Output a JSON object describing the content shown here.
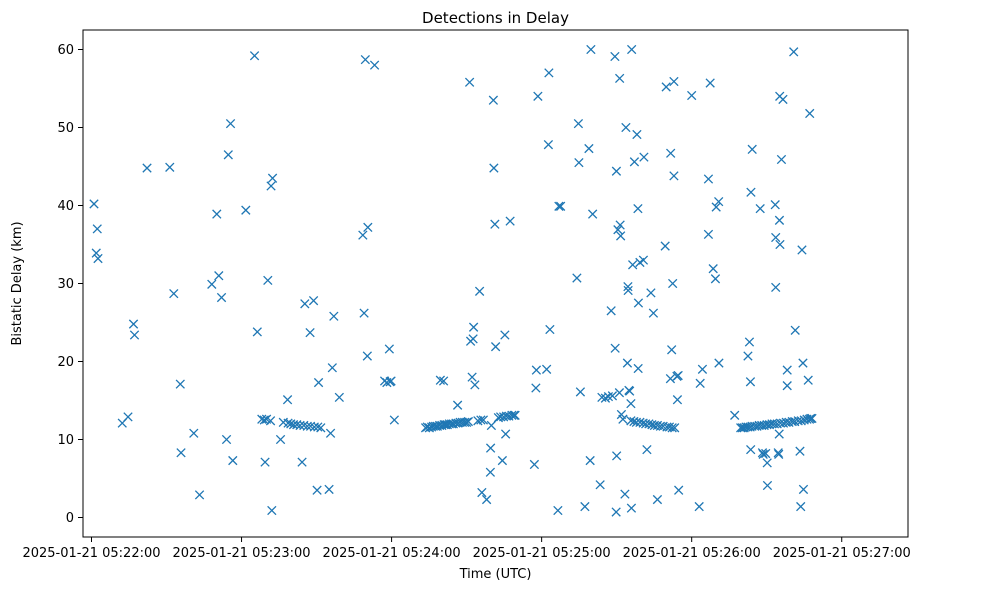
{
  "chart_data": {
    "type": "scatter",
    "title": "Detections in Delay",
    "xlabel": "Time (UTC)",
    "ylabel": "Bistatic Delay (km)",
    "x_unit": "seconds after 2025-01-21 05:22:00",
    "xlim": [
      -3.4,
      326.5
    ],
    "ylim": [
      -2.5,
      62.5
    ],
    "grid": false,
    "marker": "x",
    "color": "#1f77b4",
    "x_ticks": [
      0,
      60,
      120,
      180,
      240,
      300
    ],
    "x_tick_labels": [
      "2025-01-21 05:22:00",
      "2025-01-21 05:23:00",
      "2025-01-21 05:24:00",
      "2025-01-21 05:25:00",
      "2025-01-21 05:26:00",
      "2025-01-21 05:27:00"
    ],
    "y_ticks": [
      0,
      10,
      20,
      30,
      40,
      50,
      60
    ],
    "y_tick_labels": [
      "0",
      "10",
      "20",
      "30",
      "40",
      "50",
      "60"
    ],
    "series": [
      {
        "name": "detections",
        "points": [
          [
            1.0,
            40.2
          ],
          [
            1.9,
            33.9
          ],
          [
            2.3,
            37.0
          ],
          [
            2.6,
            33.2
          ],
          [
            12.3,
            12.1
          ],
          [
            14.6,
            12.9
          ],
          [
            16.8,
            24.8
          ],
          [
            17.2,
            23.4
          ],
          [
            22.2,
            44.8
          ],
          [
            31.3,
            44.9
          ],
          [
            32.9,
            28.7
          ],
          [
            35.5,
            17.1
          ],
          [
            35.8,
            8.3
          ],
          [
            40.9,
            10.8
          ],
          [
            43.2,
            2.9
          ],
          [
            48.1,
            29.9
          ],
          [
            50.1,
            38.9
          ],
          [
            50.9,
            31.0
          ],
          [
            52.0,
            28.2
          ],
          [
            54.0,
            10.0
          ],
          [
            54.7,
            46.5
          ],
          [
            55.6,
            50.5
          ],
          [
            56.5,
            7.3
          ],
          [
            61.7,
            39.4
          ],
          [
            65.2,
            59.2
          ],
          [
            66.3,
            23.8
          ],
          [
            68.1,
            12.6
          ],
          [
            69.1,
            12.5
          ],
          [
            69.4,
            7.1
          ],
          [
            70.0,
            12.6
          ],
          [
            70.5,
            30.4
          ],
          [
            71.6,
            12.4
          ],
          [
            71.8,
            42.5
          ],
          [
            72.1,
            0.9
          ],
          [
            72.4,
            43.5
          ],
          [
            75.6,
            10.0
          ],
          [
            76.7,
            12.2
          ],
          [
            78.4,
            15.1
          ],
          [
            78.6,
            12.1
          ],
          [
            79.7,
            12.0
          ],
          [
            80.8,
            11.9
          ],
          [
            82.1,
            11.9
          ],
          [
            83.4,
            11.8
          ],
          [
            84.2,
            7.1
          ],
          [
            84.9,
            11.8
          ],
          [
            85.3,
            27.4
          ],
          [
            86.3,
            11.7
          ],
          [
            87.4,
            23.7
          ],
          [
            87.6,
            11.7
          ],
          [
            88.8,
            27.8
          ],
          [
            89.1,
            11.6
          ],
          [
            90.2,
            3.5
          ],
          [
            90.5,
            11.6
          ],
          [
            90.8,
            17.3
          ],
          [
            91.7,
            11.5
          ],
          [
            95.0,
            3.6
          ],
          [
            95.6,
            10.8
          ],
          [
            96.3,
            19.2
          ],
          [
            96.9,
            25.8
          ],
          [
            99.1,
            15.4
          ],
          [
            108.5,
            36.2
          ],
          [
            109.0,
            26.2
          ],
          [
            109.5,
            58.7
          ],
          [
            110.3,
            20.7
          ],
          [
            110.5,
            37.2
          ],
          [
            113.2,
            58.0
          ],
          [
            117.2,
            17.5
          ],
          [
            118.1,
            17.3
          ],
          [
            119.1,
            21.6
          ],
          [
            119.4,
            17.4
          ],
          [
            119.8,
            17.5
          ],
          [
            121.1,
            12.5
          ],
          [
            133.6,
            11.5
          ],
          [
            134.3,
            11.6
          ],
          [
            135.1,
            11.5
          ],
          [
            136.0,
            11.6
          ],
          [
            136.7,
            11.7
          ],
          [
            137.6,
            11.7
          ],
          [
            138.3,
            11.7
          ],
          [
            139.2,
            11.8
          ],
          [
            139.5,
            17.6
          ],
          [
            140.1,
            11.8
          ],
          [
            140.8,
            17.5
          ],
          [
            141.0,
            11.9
          ],
          [
            141.6,
            11.9
          ],
          [
            142.3,
            11.9
          ],
          [
            143.1,
            12.0
          ],
          [
            144.0,
            12.0
          ],
          [
            144.7,
            12.0
          ],
          [
            145.7,
            12.1
          ],
          [
            146.4,
            14.4
          ],
          [
            146.6,
            12.1
          ],
          [
            147.4,
            12.2
          ],
          [
            148.3,
            12.2
          ],
          [
            149.2,
            12.2
          ],
          [
            150.0,
            12.2
          ],
          [
            150.7,
            12.3
          ],
          [
            151.2,
            55.8
          ],
          [
            151.6,
            22.6
          ],
          [
            152.2,
            18.0
          ],
          [
            152.6,
            22.9
          ],
          [
            152.8,
            24.4
          ],
          [
            153.3,
            17.0
          ],
          [
            154.5,
            12.4
          ],
          [
            155.2,
            29.0
          ],
          [
            155.7,
            12.5
          ],
          [
            156.1,
            3.2
          ],
          [
            156.7,
            12.5
          ],
          [
            158.0,
            2.3
          ],
          [
            159.5,
            5.8
          ],
          [
            159.6,
            8.9
          ],
          [
            159.9,
            11.8
          ],
          [
            160.7,
            53.5
          ],
          [
            160.9,
            44.8
          ],
          [
            161.3,
            37.6
          ],
          [
            161.6,
            21.9
          ],
          [
            162.7,
            12.8
          ],
          [
            163.6,
            12.9
          ],
          [
            164.3,
            7.3
          ],
          [
            164.8,
            12.9
          ],
          [
            165.3,
            23.4
          ],
          [
            165.6,
            10.7
          ],
          [
            165.9,
            13.0
          ],
          [
            166.9,
            13.0
          ],
          [
            167.4,
            38.0
          ],
          [
            168.1,
            13.1
          ],
          [
            169.0,
            13.1
          ],
          [
            169.4,
            13.1
          ],
          [
            177.1,
            6.8
          ],
          [
            177.7,
            16.6
          ],
          [
            177.9,
            18.9
          ],
          [
            178.5,
            54.0
          ],
          [
            182.0,
            19.0
          ],
          [
            182.7,
            47.8
          ],
          [
            182.9,
            57.0
          ],
          [
            183.3,
            24.1
          ],
          [
            186.5,
            0.9
          ],
          [
            186.9,
            39.9
          ],
          [
            187.6,
            39.9
          ],
          [
            194.1,
            30.7
          ],
          [
            194.7,
            50.5
          ],
          [
            194.9,
            45.5
          ],
          [
            195.5,
            16.1
          ],
          [
            197.3,
            1.4
          ],
          [
            198.9,
            47.3
          ],
          [
            199.4,
            7.3
          ],
          [
            199.7,
            60.0
          ],
          [
            200.4,
            38.9
          ],
          [
            203.4,
            4.2
          ],
          [
            204.1,
            15.4
          ],
          [
            205.5,
            15.3
          ],
          [
            206.7,
            15.5
          ],
          [
            207.8,
            26.5
          ],
          [
            208.3,
            15.6
          ],
          [
            209.3,
            59.1
          ],
          [
            209.4,
            21.7
          ],
          [
            209.8,
            0.7
          ],
          [
            209.9,
            44.4
          ],
          [
            210.0,
            7.9
          ],
          [
            210.5,
            36.9
          ],
          [
            211.1,
            16.0
          ],
          [
            211.2,
            56.3
          ],
          [
            211.4,
            37.5
          ],
          [
            211.6,
            36.1
          ],
          [
            211.9,
            13.2
          ],
          [
            212.5,
            12.6
          ],
          [
            213.3,
            3.0
          ],
          [
            213.7,
            50.0
          ],
          [
            214.3,
            19.8
          ],
          [
            214.5,
            29.6
          ],
          [
            214.6,
            29.1
          ],
          [
            214.9,
            16.3
          ],
          [
            215.2,
            16.2
          ],
          [
            215.7,
            12.4
          ],
          [
            215.7,
            14.6
          ],
          [
            215.9,
            1.2
          ],
          [
            216.0,
            60.0
          ],
          [
            216.4,
            32.4
          ],
          [
            216.9,
            12.3
          ],
          [
            217.1,
            45.6
          ],
          [
            217.9,
            12.2
          ],
          [
            218.1,
            49.1
          ],
          [
            218.5,
            39.6
          ],
          [
            218.6,
            19.1
          ],
          [
            218.7,
            27.5
          ],
          [
            219.3,
            12.2
          ],
          [
            219.3,
            32.7
          ],
          [
            220.6,
            12.1
          ],
          [
            220.7,
            33.0
          ],
          [
            220.9,
            46.2
          ],
          [
            221.6,
            12.0
          ],
          [
            222.1,
            8.7
          ],
          [
            222.9,
            12.0
          ],
          [
            223.7,
            28.8
          ],
          [
            224.1,
            11.9
          ],
          [
            224.7,
            26.2
          ],
          [
            225.1,
            11.8
          ],
          [
            226.3,
            11.8
          ],
          [
            226.3,
            2.3
          ],
          [
            227.5,
            11.7
          ],
          [
            228.6,
            11.7
          ],
          [
            229.4,
            34.8
          ],
          [
            229.8,
            55.2
          ],
          [
            230.1,
            11.6
          ],
          [
            231.1,
            11.6
          ],
          [
            231.5,
            17.8
          ],
          [
            231.6,
            46.7
          ],
          [
            232.0,
            21.5
          ],
          [
            232.2,
            11.5
          ],
          [
            232.4,
            30.0
          ],
          [
            232.9,
            55.9
          ],
          [
            232.9,
            43.8
          ],
          [
            233.2,
            11.5
          ],
          [
            234.1,
            18.1
          ],
          [
            234.3,
            15.1
          ],
          [
            234.6,
            18.2
          ],
          [
            234.8,
            3.5
          ],
          [
            240.0,
            54.1
          ],
          [
            243.0,
            1.4
          ],
          [
            243.4,
            17.2
          ],
          [
            244.3,
            19.0
          ],
          [
            246.7,
            43.4
          ],
          [
            246.7,
            36.3
          ],
          [
            247.4,
            55.7
          ],
          [
            248.6,
            31.9
          ],
          [
            249.5,
            30.6
          ],
          [
            249.8,
            39.8
          ],
          [
            250.8,
            40.5
          ],
          [
            250.9,
            19.8
          ],
          [
            257.2,
            13.1
          ],
          [
            259.6,
            11.5
          ],
          [
            260.3,
            11.5
          ],
          [
            261.0,
            11.5
          ],
          [
            261.7,
            11.6
          ],
          [
            262.5,
            11.6
          ],
          [
            262.5,
            20.7
          ],
          [
            263.1,
            22.5
          ],
          [
            263.4,
            11.6
          ],
          [
            263.5,
            17.4
          ],
          [
            263.6,
            8.7
          ],
          [
            263.7,
            41.7
          ],
          [
            264.1,
            11.7
          ],
          [
            264.2,
            47.2
          ],
          [
            265.2,
            11.7
          ],
          [
            266.1,
            11.7
          ],
          [
            267.0,
            11.8
          ],
          [
            267.4,
            39.6
          ],
          [
            268.0,
            11.8
          ],
          [
            268.3,
            8.3
          ],
          [
            268.6,
            8.1
          ],
          [
            269.0,
            11.8
          ],
          [
            269.6,
            8.2
          ],
          [
            270.1,
            11.9
          ],
          [
            270.2,
            7.0
          ],
          [
            270.3,
            4.1
          ],
          [
            271.1,
            11.9
          ],
          [
            272.1,
            12.0
          ],
          [
            273.1,
            12.0
          ],
          [
            273.4,
            40.1
          ],
          [
            273.6,
            29.5
          ],
          [
            273.6,
            35.9
          ],
          [
            274.2,
            12.0
          ],
          [
            274.6,
            8.3
          ],
          [
            274.8,
            8.1
          ],
          [
            275.0,
            10.7
          ],
          [
            275.1,
            38.1
          ],
          [
            275.2,
            54.0
          ],
          [
            275.3,
            35.0
          ],
          [
            275.5,
            12.1
          ],
          [
            275.9,
            45.9
          ],
          [
            276.5,
            53.6
          ],
          [
            276.7,
            12.1
          ],
          [
            277.8,
            12.2
          ],
          [
            278.2,
            18.9
          ],
          [
            278.2,
            16.9
          ],
          [
            278.9,
            12.2
          ],
          [
            280.2,
            12.3
          ],
          [
            280.8,
            59.7
          ],
          [
            281.2,
            12.3
          ],
          [
            281.4,
            24.0
          ],
          [
            282.6,
            12.4
          ],
          [
            283.3,
            8.5
          ],
          [
            283.6,
            1.4
          ],
          [
            283.8,
            12.4
          ],
          [
            284.1,
            34.3
          ],
          [
            284.5,
            19.8
          ],
          [
            284.7,
            3.6
          ],
          [
            285.0,
            12.5
          ],
          [
            286.1,
            12.6
          ],
          [
            286.6,
            17.6
          ],
          [
            287.1,
            12.6
          ],
          [
            287.2,
            51.8
          ],
          [
            287.6,
            12.7
          ],
          [
            288.1,
            12.7
          ]
        ]
      }
    ]
  }
}
